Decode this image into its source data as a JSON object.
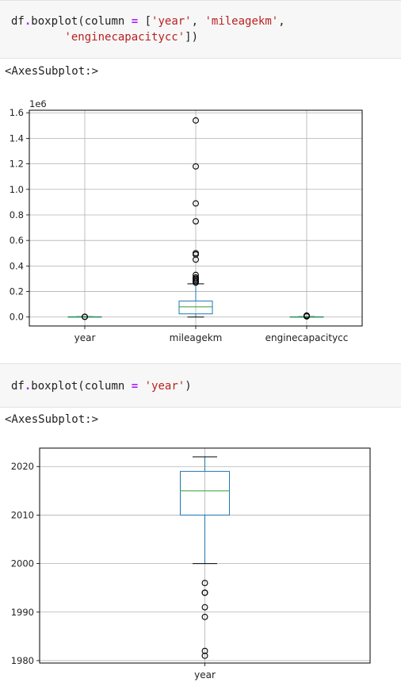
{
  "cells": [
    {
      "code_lines": [
        {
          "obj": "df",
          "dot": ".",
          "fn": "boxplot(column ",
          "eq": "=",
          "rest1": " [",
          "s1": "'year'",
          "c1": ", ",
          "s2": "'mileagekm'",
          "c2": ","
        },
        {
          "indent": "        ",
          "s3": "'enginecapacitycc'",
          "end": "])"
        }
      ],
      "output_text": "<AxesSubplot:>"
    },
    {
      "code_line": {
        "obj": "df",
        "dot": ".",
        "fn": "boxplot(column ",
        "eq": "=",
        "sp": " ",
        "s1": "'year'",
        "end": ")"
      },
      "output_text": "<AxesSubplot:>"
    }
  ],
  "chart_data": [
    {
      "type": "box",
      "offset_label": "1e6",
      "categories": [
        "year",
        "mileagekm",
        "enginecapacitycc"
      ],
      "yticks": [
        "0.0",
        "0.2",
        "0.4",
        "0.6",
        "0.8",
        "1.0",
        "1.2",
        "1.4",
        "1.6"
      ],
      "ylim": [
        -0.07,
        1.62
      ],
      "units": "1e6",
      "grid": true,
      "boxes": [
        {
          "name": "year",
          "q1": 0.002,
          "median": 0.002,
          "q3": 0.002,
          "whislo": 0.002,
          "whishi": 0.002,
          "fliers": [
            0.0019,
            0.0021
          ]
        },
        {
          "name": "mileagekm",
          "q1": 0.025,
          "median": 0.08,
          "q3": 0.125,
          "whislo": 0.0,
          "whishi": 0.26,
          "fliers": [
            0.27,
            0.28,
            0.29,
            0.3,
            0.31,
            0.33,
            0.45,
            0.49,
            0.5,
            0.75,
            0.89,
            1.18,
            1.54
          ]
        },
        {
          "name": "enginecapacitycc",
          "q1": 0.0012,
          "median": 0.0015,
          "q3": 0.002,
          "whislo": 0.0008,
          "whishi": 0.003,
          "fliers": [
            0.005,
            0.008,
            0.012
          ]
        }
      ]
    },
    {
      "type": "box",
      "categories": [
        "year"
      ],
      "yticks": [
        "1980",
        "1990",
        "2000",
        "2010",
        "2020"
      ],
      "ylim": [
        1979.5,
        2023.8
      ],
      "grid": true,
      "boxes": [
        {
          "name": "year",
          "q1": 2010,
          "median": 2015,
          "q3": 2019,
          "whislo": 2000,
          "whishi": 2022,
          "fliers": [
            1996,
            1994,
            1994,
            1991,
            1989,
            1982,
            1981
          ]
        }
      ]
    }
  ]
}
